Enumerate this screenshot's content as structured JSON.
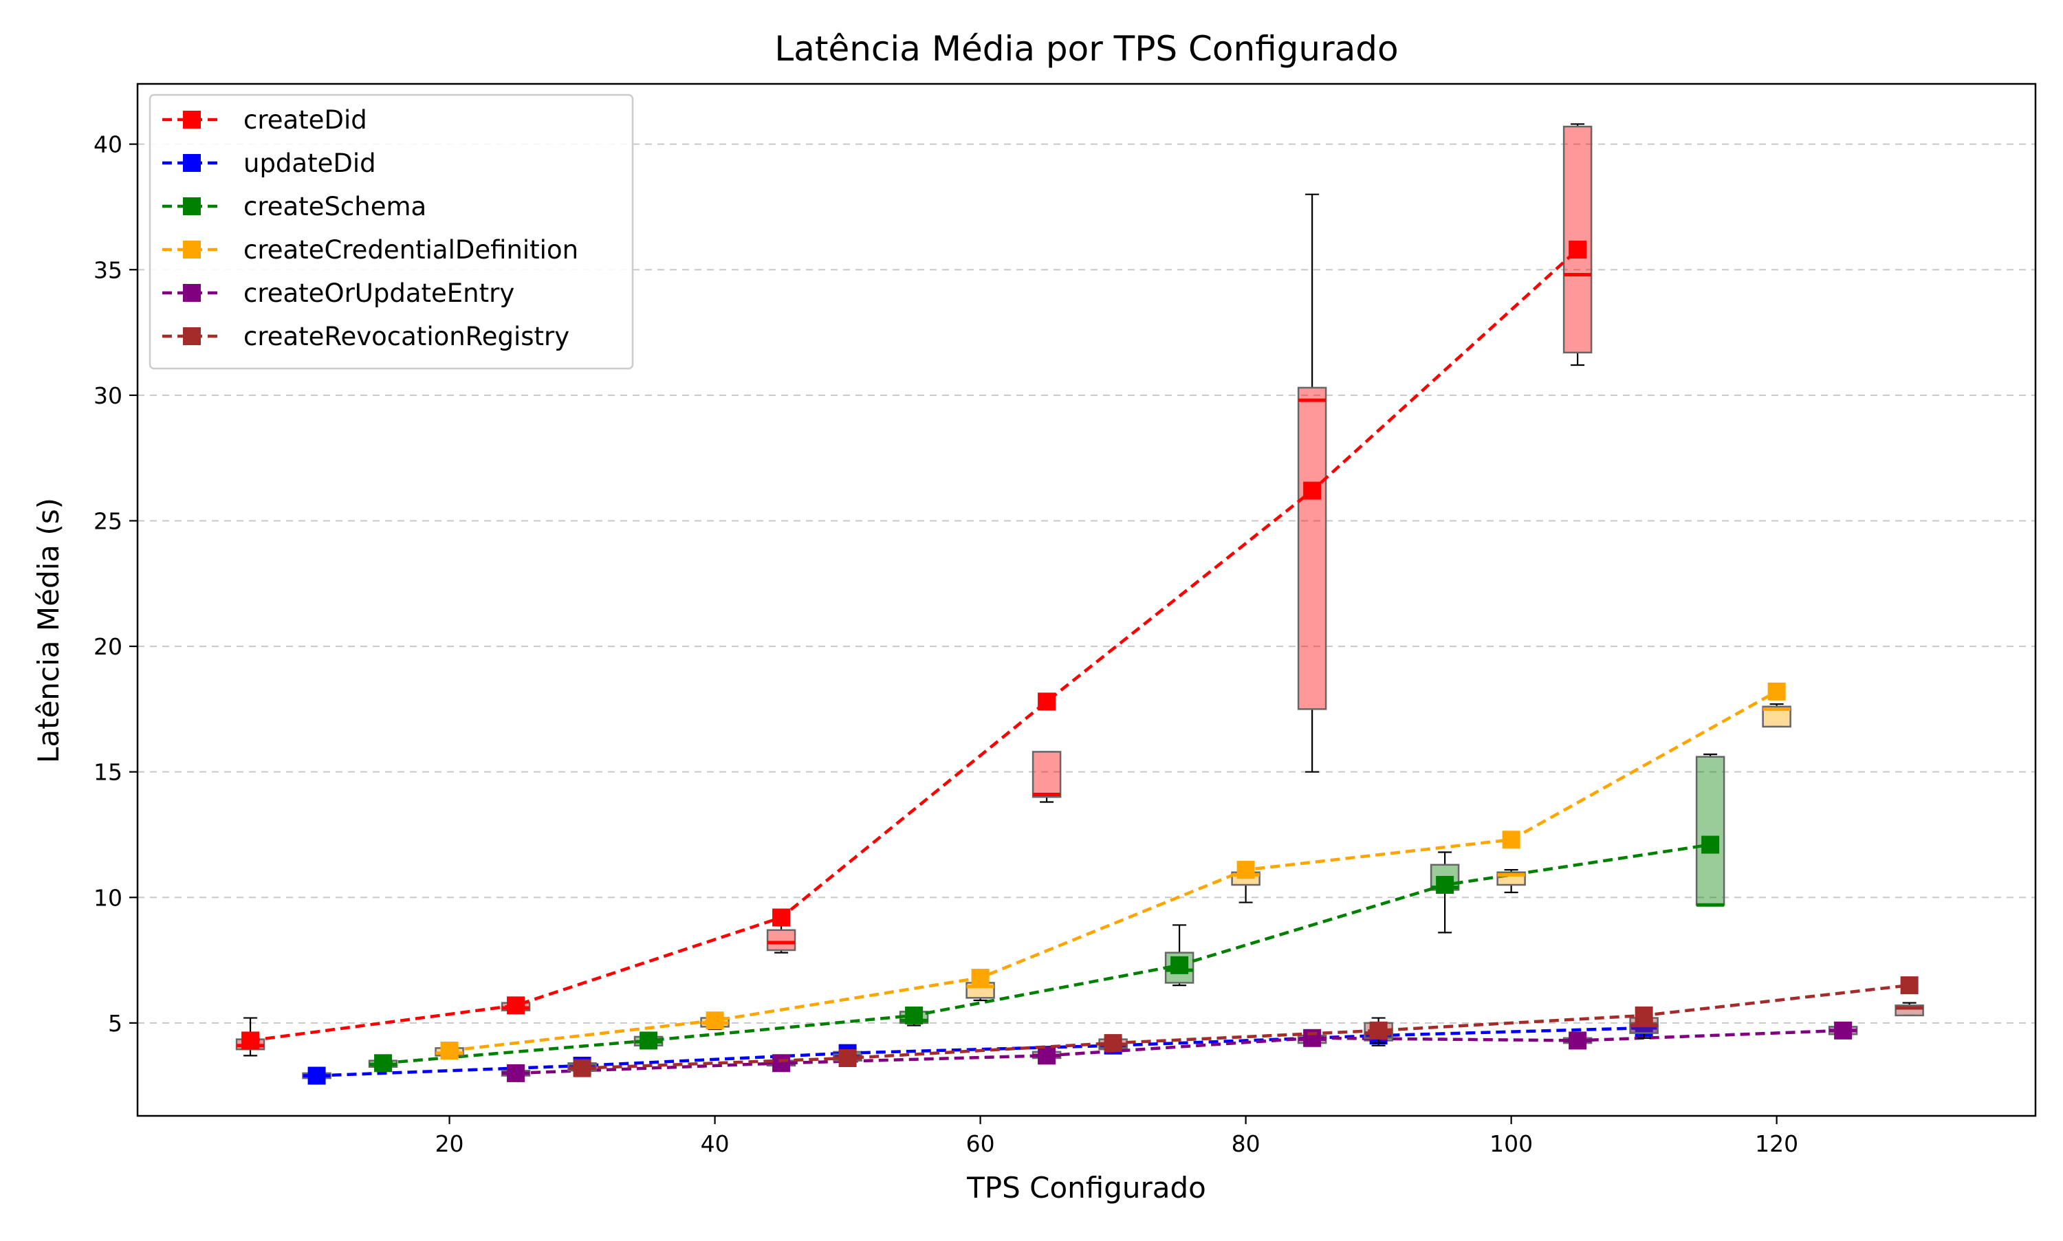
{
  "chart_data": {
    "type": "line",
    "title": "Latência Média por TPS Configurado",
    "xlabel": "TPS Configurado",
    "ylabel": "Latência Média (s)",
    "xlim": [
      -3.5,
      139.5
    ],
    "ylim": [
      1.3,
      42.4
    ],
    "xticks": [
      20,
      40,
      60,
      80,
      100,
      120
    ],
    "yticks": [
      5,
      10,
      15,
      20,
      25,
      30,
      35,
      40
    ],
    "grid": "y-dashed",
    "legend_position": "top-left",
    "colors": {
      "createDid": "#ff0000",
      "updateDid": "#0000ff",
      "createSchema": "#008000",
      "createCredentialDefinition": "#ffa500",
      "createOrUpdateEntry": "#800080",
      "createRevocationRegistry": "#a52a2a"
    },
    "series": [
      {
        "name": "createDid",
        "x": [
          5,
          25,
          45,
          65,
          85,
          105
        ],
        "mean": [
          4.3,
          5.7,
          9.2,
          17.8,
          26.2,
          35.8
        ],
        "box": [
          {
            "x": 5,
            "q1": 3.95,
            "median": 4.1,
            "q3": 4.35,
            "whisker_low": 3.7,
            "whisker_high": 5.2
          },
          {
            "x": 25,
            "q1": 5.5,
            "median": 5.6,
            "q3": 5.8,
            "whisker_low": 5.4,
            "whisker_high": 5.9
          },
          {
            "x": 45,
            "q1": 7.9,
            "median": 8.2,
            "q3": 8.7,
            "whisker_low": 7.8,
            "whisker_high": 8.9
          },
          {
            "x": 65,
            "q1": 14.0,
            "median": 14.1,
            "q3": 15.8,
            "whisker_low": 13.8,
            "whisker_high": 15.8
          },
          {
            "x": 85,
            "q1": 17.5,
            "median": 29.8,
            "q3": 30.3,
            "whisker_low": 15.0,
            "whisker_high": 38.0
          },
          {
            "x": 105,
            "q1": 31.7,
            "median": 34.8,
            "q3": 40.7,
            "whisker_low": 31.2,
            "whisker_high": 40.8
          }
        ]
      },
      {
        "name": "updateDid",
        "x": [
          10,
          30,
          50,
          70,
          90,
          110
        ],
        "mean": [
          2.9,
          3.3,
          3.8,
          4.1,
          4.5,
          4.8
        ],
        "box": [
          {
            "x": 10,
            "q1": 2.8,
            "median": 2.9,
            "q3": 3.0,
            "whisker_low": 2.7,
            "whisker_high": 3.1
          },
          {
            "x": 30,
            "q1": 3.2,
            "median": 3.3,
            "q3": 3.4,
            "whisker_low": 3.1,
            "whisker_high": 3.5
          },
          {
            "x": 50,
            "q1": 3.6,
            "median": 3.7,
            "q3": 3.85,
            "whisker_low": 3.5,
            "whisker_high": 3.95
          },
          {
            "x": 70,
            "q1": 3.95,
            "median": 4.05,
            "q3": 4.15,
            "whisker_low": 3.85,
            "whisker_high": 4.25
          },
          {
            "x": 90,
            "q1": 4.3,
            "median": 4.45,
            "q3": 4.6,
            "whisker_low": 4.1,
            "whisker_high": 4.8
          },
          {
            "x": 110,
            "q1": 4.6,
            "median": 4.8,
            "q3": 5.0,
            "whisker_low": 4.4,
            "whisker_high": 5.2
          }
        ]
      },
      {
        "name": "createSchema",
        "x": [
          15,
          35,
          55,
          75,
          95,
          115
        ],
        "mean": [
          3.4,
          4.3,
          5.3,
          7.3,
          10.5,
          12.1
        ],
        "box": [
          {
            "x": 15,
            "q1": 3.25,
            "median": 3.35,
            "q3": 3.5,
            "whisker_low": 3.2,
            "whisker_high": 3.6
          },
          {
            "x": 35,
            "q1": 4.1,
            "median": 4.25,
            "q3": 4.45,
            "whisker_low": 4.0,
            "whisker_high": 4.55
          },
          {
            "x": 55,
            "q1": 5.0,
            "median": 5.1,
            "q3": 5.45,
            "whisker_low": 4.9,
            "whisker_high": 5.55
          },
          {
            "x": 75,
            "q1": 6.6,
            "median": 7.1,
            "q3": 7.8,
            "whisker_low": 6.5,
            "whisker_high": 8.9
          },
          {
            "x": 95,
            "q1": 10.3,
            "median": 10.4,
            "q3": 11.3,
            "whisker_low": 8.6,
            "whisker_high": 11.8
          },
          {
            "x": 115,
            "q1": 9.7,
            "median": 9.7,
            "q3": 15.6,
            "whisker_low": 9.7,
            "whisker_high": 15.7
          }
        ]
      },
      {
        "name": "createCredentialDefinition",
        "x": [
          20,
          40,
          60,
          80,
          100,
          120
        ],
        "mean": [
          3.9,
          5.1,
          6.8,
          11.1,
          12.3,
          18.2
        ],
        "box": [
          {
            "x": 20,
            "q1": 3.7,
            "median": 3.8,
            "q3": 4.0,
            "whisker_low": 3.6,
            "whisker_high": 4.1
          },
          {
            "x": 40,
            "q1": 4.85,
            "median": 5.0,
            "q3": 5.2,
            "whisker_low": 4.75,
            "whisker_high": 5.3
          },
          {
            "x": 60,
            "q1": 6.0,
            "median": 6.45,
            "q3": 6.6,
            "whisker_low": 5.9,
            "whisker_high": 6.7
          },
          {
            "x": 80,
            "q1": 10.5,
            "median": 10.9,
            "q3": 11.0,
            "whisker_low": 9.8,
            "whisker_high": 11.1
          },
          {
            "x": 100,
            "q1": 10.5,
            "median": 10.9,
            "q3": 11.0,
            "whisker_low": 10.2,
            "whisker_high": 11.1
          },
          {
            "x": 120,
            "q1": 16.8,
            "median": 17.5,
            "q3": 17.6,
            "whisker_low": 16.8,
            "whisker_high": 17.7
          }
        ]
      },
      {
        "name": "createOrUpdateEntry",
        "x": [
          25,
          45,
          65,
          85,
          105,
          125
        ],
        "mean": [
          3.0,
          3.4,
          3.7,
          4.4,
          4.3,
          4.7
        ],
        "box": [
          {
            "x": 25,
            "q1": 2.9,
            "median": 3.0,
            "q3": 3.1,
            "whisker_low": 2.8,
            "whisker_high": 3.2
          },
          {
            "x": 45,
            "q1": 3.3,
            "median": 3.4,
            "q3": 3.5,
            "whisker_low": 3.2,
            "whisker_high": 3.6
          },
          {
            "x": 65,
            "q1": 3.6,
            "median": 3.7,
            "q3": 3.85,
            "whisker_low": 3.5,
            "whisker_high": 3.95
          },
          {
            "x": 85,
            "q1": 4.2,
            "median": 4.35,
            "q3": 4.5,
            "whisker_low": 4.1,
            "whisker_high": 4.6
          },
          {
            "x": 105,
            "q1": 4.2,
            "median": 4.3,
            "q3": 4.4,
            "whisker_low": 4.1,
            "whisker_high": 4.5
          },
          {
            "x": 125,
            "q1": 4.55,
            "median": 4.7,
            "q3": 4.85,
            "whisker_low": 4.5,
            "whisker_high": 4.95
          }
        ]
      },
      {
        "name": "createRevocationRegistry",
        "x": [
          30,
          50,
          70,
          90,
          110,
          130
        ],
        "mean": [
          3.2,
          3.6,
          4.2,
          4.7,
          5.3,
          6.5
        ],
        "box": [
          {
            "x": 30,
            "q1": 3.1,
            "median": 3.2,
            "q3": 3.35,
            "whisker_low": 3.0,
            "whisker_high": 3.5
          },
          {
            "x": 50,
            "q1": 3.5,
            "median": 3.6,
            "q3": 3.75,
            "whisker_low": 3.4,
            "whisker_high": 3.85
          },
          {
            "x": 70,
            "q1": 4.0,
            "median": 4.15,
            "q3": 4.35,
            "whisker_low": 3.9,
            "whisker_high": 4.45
          },
          {
            "x": 90,
            "q1": 4.4,
            "median": 4.6,
            "q3": 5.0,
            "whisker_low": 4.2,
            "whisker_high": 5.2
          },
          {
            "x": 110,
            "q1": 4.6,
            "median": 4.9,
            "q3": 5.2,
            "whisker_low": 4.4,
            "whisker_high": 5.4
          },
          {
            "x": 130,
            "q1": 5.3,
            "median": 5.6,
            "q3": 5.7,
            "whisker_low": 5.3,
            "whisker_high": 5.8
          }
        ]
      }
    ]
  }
}
